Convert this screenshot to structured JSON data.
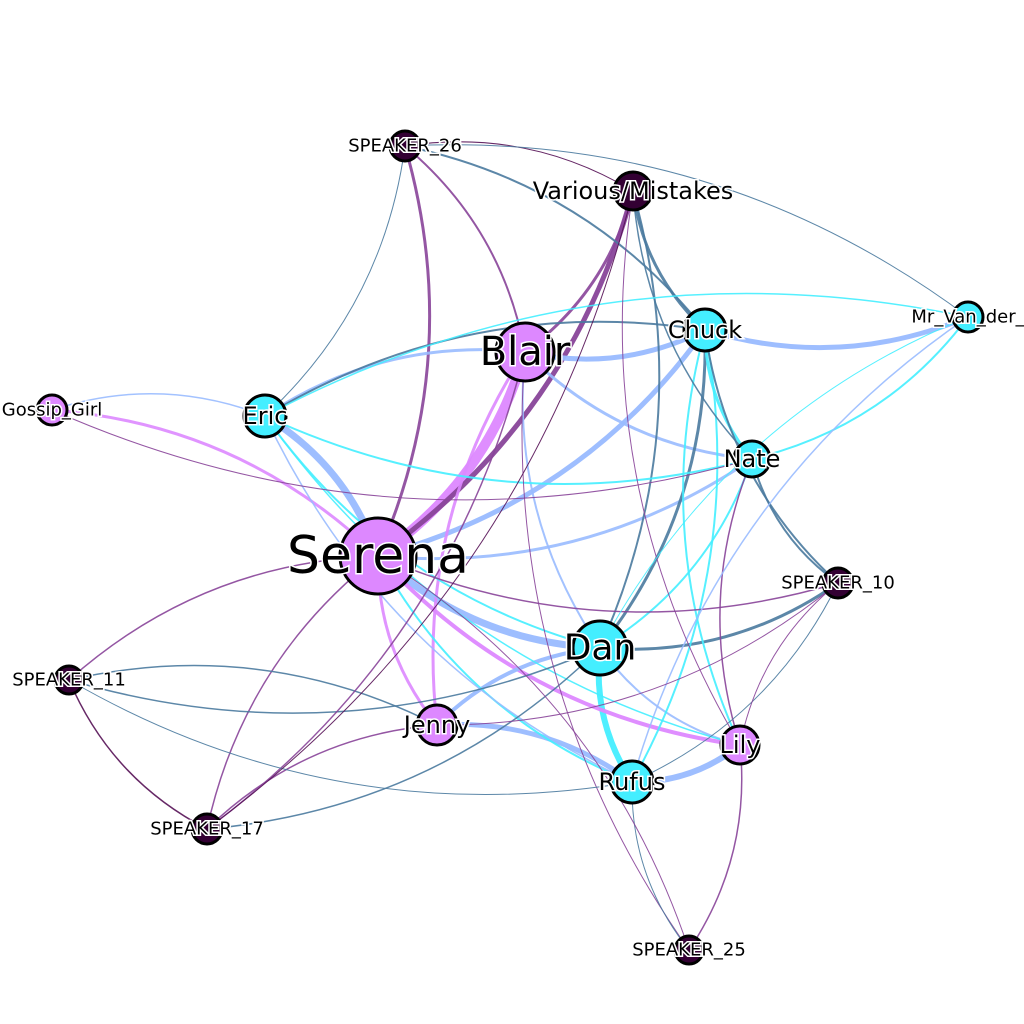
{
  "colors": {
    "pink": "#dd88ff",
    "cyan": "#44eeff",
    "dark": "#330033",
    "light_blue": "#99bbff",
    "steel_blue": "#4a7a9e",
    "purple": "#884499",
    "deep_purple": "#551155"
  },
  "nodes": [
    {
      "id": "serena",
      "label": "Serena",
      "color": "pink"
    },
    {
      "id": "blair",
      "label": "Blair",
      "color": "pink"
    },
    {
      "id": "dan",
      "label": "Dan",
      "color": "cyan"
    },
    {
      "id": "chuck",
      "label": "Chuck",
      "color": "cyan"
    },
    {
      "id": "nate",
      "label": "Nate",
      "color": "cyan"
    },
    {
      "id": "eric",
      "label": "Eric",
      "color": "cyan"
    },
    {
      "id": "jenny",
      "label": "Jenny",
      "color": "pink"
    },
    {
      "id": "lily",
      "label": "Lily",
      "color": "pink"
    },
    {
      "id": "rufus",
      "label": "Rufus",
      "color": "cyan"
    },
    {
      "id": "various",
      "label": "Various/Mistakes",
      "color": "dark"
    },
    {
      "id": "gossip",
      "label": "Gossip_Girl",
      "color": "pink"
    },
    {
      "id": "mrvan",
      "label": "Mr_Van_der_",
      "color": "cyan"
    },
    {
      "id": "sp26",
      "label": "SPEAKER_26",
      "color": "dark"
    },
    {
      "id": "sp10",
      "label": "SPEAKER_10",
      "color": "dark"
    },
    {
      "id": "sp11",
      "label": "SPEAKER_11",
      "color": "dark"
    },
    {
      "id": "sp17",
      "label": "SPEAKER_17",
      "color": "dark"
    },
    {
      "id": "sp25",
      "label": "SPEAKER_25",
      "color": "dark"
    }
  ],
  "edges": [
    {
      "source": "serena",
      "target": "blair",
      "weight": 10,
      "color": "pink"
    },
    {
      "source": "serena",
      "target": "eric",
      "weight": 7,
      "color": "light_blue"
    },
    {
      "source": "serena",
      "target": "dan",
      "weight": 7,
      "color": "light_blue"
    },
    {
      "source": "serena",
      "target": "chuck",
      "weight": 5,
      "color": "light_blue"
    },
    {
      "source": "serena",
      "target": "various",
      "weight": 5,
      "color": "purple"
    },
    {
      "source": "serena",
      "target": "lily",
      "weight": 4,
      "color": "pink"
    },
    {
      "source": "serena",
      "target": "jenny",
      "weight": 3,
      "color": "pink"
    },
    {
      "source": "serena",
      "target": "gossip",
      "weight": 3,
      "color": "pink"
    },
    {
      "source": "serena",
      "target": "sp26",
      "weight": 3,
      "color": "purple"
    },
    {
      "source": "serena",
      "target": "nate",
      "weight": 3,
      "color": "light_blue"
    },
    {
      "source": "serena",
      "target": "rufus",
      "weight": 2,
      "color": "cyan"
    },
    {
      "source": "serena",
      "target": "sp11",
      "weight": 1.5,
      "color": "purple"
    },
    {
      "source": "serena",
      "target": "sp17",
      "weight": 1.5,
      "color": "purple"
    },
    {
      "source": "serena",
      "target": "sp10",
      "weight": 1.5,
      "color": "purple"
    },
    {
      "source": "blair",
      "target": "chuck",
      "weight": 5,
      "color": "light_blue"
    },
    {
      "source": "blair",
      "target": "eric",
      "weight": 3,
      "color": "light_blue"
    },
    {
      "source": "blair",
      "target": "various",
      "weight": 3,
      "color": "purple"
    },
    {
      "source": "blair",
      "target": "sp26",
      "weight": 2,
      "color": "purple"
    },
    {
      "source": "blair",
      "target": "nate",
      "weight": 3,
      "color": "light_blue"
    },
    {
      "source": "blair",
      "target": "dan",
      "weight": 2,
      "color": "light_blue"
    },
    {
      "source": "blair",
      "target": "jenny",
      "weight": 3,
      "color": "pink"
    },
    {
      "source": "blair",
      "target": "sp25",
      "weight": 1,
      "color": "purple"
    },
    {
      "source": "dan",
      "target": "rufus",
      "weight": 6,
      "color": "cyan"
    },
    {
      "source": "dan",
      "target": "jenny",
      "weight": 4,
      "color": "light_blue"
    },
    {
      "source": "dan",
      "target": "chuck",
      "weight": 3,
      "color": "steel_blue"
    },
    {
      "source": "dan",
      "target": "sp10",
      "weight": 3,
      "color": "steel_blue"
    },
    {
      "source": "dan",
      "target": "nate",
      "weight": 2,
      "color": "cyan"
    },
    {
      "source": "dan",
      "target": "lily",
      "weight": 2,
      "color": "light_blue"
    },
    {
      "source": "dan",
      "target": "various",
      "weight": 2,
      "color": "steel_blue"
    },
    {
      "source": "rufus",
      "target": "lily",
      "weight": 6,
      "color": "light_blue"
    },
    {
      "source": "rufus",
      "target": "jenny",
      "weight": 5,
      "color": "light_blue"
    },
    {
      "source": "rufus",
      "target": "chuck",
      "weight": 2,
      "color": "cyan"
    },
    {
      "source": "rufus",
      "target": "sp25",
      "weight": 1,
      "color": "steel_blue"
    },
    {
      "source": "rufus",
      "target": "sp10",
      "weight": 1,
      "color": "steel_blue"
    },
    {
      "source": "chuck",
      "target": "nate",
      "weight": 3,
      "color": "cyan"
    },
    {
      "source": "chuck",
      "target": "eric",
      "weight": 2,
      "color": "steel_blue"
    },
    {
      "source": "chuck",
      "target": "mrvan",
      "weight": 5,
      "color": "light_blue"
    },
    {
      "source": "chuck",
      "target": "sp26",
      "weight": 2,
      "color": "steel_blue"
    },
    {
      "source": "chuck",
      "target": "sp10",
      "weight": 2,
      "color": "steel_blue"
    },
    {
      "source": "chuck",
      "target": "lily",
      "weight": 2,
      "color": "cyan"
    },
    {
      "source": "various",
      "target": "chuck",
      "weight": 3,
      "color": "steel_blue"
    },
    {
      "source": "various",
      "target": "sp26",
      "weight": 1,
      "color": "deep_purple"
    },
    {
      "source": "various",
      "target": "nate",
      "weight": 1.5,
      "color": "steel_blue"
    },
    {
      "source": "various",
      "target": "lily",
      "weight": 1,
      "color": "purple"
    },
    {
      "source": "eric",
      "target": "gossip",
      "weight": 1.5,
      "color": "light_blue"
    },
    {
      "source": "eric",
      "target": "nate",
      "weight": 2,
      "color": "cyan"
    },
    {
      "source": "eric",
      "target": "dan",
      "weight": 2,
      "color": "cyan"
    },
    {
      "source": "eric",
      "target": "lily",
      "weight": 1.5,
      "color": "cyan"
    },
    {
      "source": "eric",
      "target": "rufus",
      "weight": 1.5,
      "color": "light_blue"
    },
    {
      "source": "eric",
      "target": "sp26",
      "weight": 1,
      "color": "steel_blue"
    },
    {
      "source": "nate",
      "target": "mrvan",
      "weight": 2,
      "color": "cyan"
    },
    {
      "source": "nate",
      "target": "sp10",
      "weight": 2,
      "color": "steel_blue"
    },
    {
      "source": "nate",
      "target": "lily",
      "weight": 1.5,
      "color": "purple"
    },
    {
      "source": "mrvan",
      "target": "sp26",
      "weight": 1,
      "color": "steel_blue"
    },
    {
      "source": "mrvan",
      "target": "eric",
      "weight": 1.5,
      "color": "cyan"
    },
    {
      "source": "mrvan",
      "target": "rufus",
      "weight": 1.5,
      "color": "light_blue"
    },
    {
      "source": "mrvan",
      "target": "dan",
      "weight": 1,
      "color": "cyan"
    },
    {
      "source": "jenny",
      "target": "sp11",
      "weight": 1.5,
      "color": "steel_blue"
    },
    {
      "source": "jenny",
      "target": "sp17",
      "weight": 1.5,
      "color": "purple"
    },
    {
      "source": "jenny",
      "target": "sp10",
      "weight": 1,
      "color": "purple"
    },
    {
      "source": "sp11",
      "target": "sp17",
      "weight": 1.5,
      "color": "deep_purple"
    },
    {
      "source": "sp11",
      "target": "dan",
      "weight": 1.5,
      "color": "steel_blue"
    },
    {
      "source": "sp11",
      "target": "rufus",
      "weight": 1,
      "color": "steel_blue"
    },
    {
      "source": "sp17",
      "target": "various",
      "weight": 1,
      "color": "deep_purple"
    },
    {
      "source": "sp17",
      "target": "blair",
      "weight": 1.5,
      "color": "purple"
    },
    {
      "source": "sp17",
      "target": "dan",
      "weight": 1.5,
      "color": "steel_blue"
    },
    {
      "source": "sp25",
      "target": "lily",
      "weight": 1.5,
      "color": "purple"
    },
    {
      "source": "sp25",
      "target": "serena",
      "weight": 1,
      "color": "purple"
    },
    {
      "source": "sp10",
      "target": "lily",
      "weight": 1,
      "color": "purple"
    },
    {
      "source": "gossip",
      "target": "nate",
      "weight": 1,
      "color": "purple"
    }
  ]
}
